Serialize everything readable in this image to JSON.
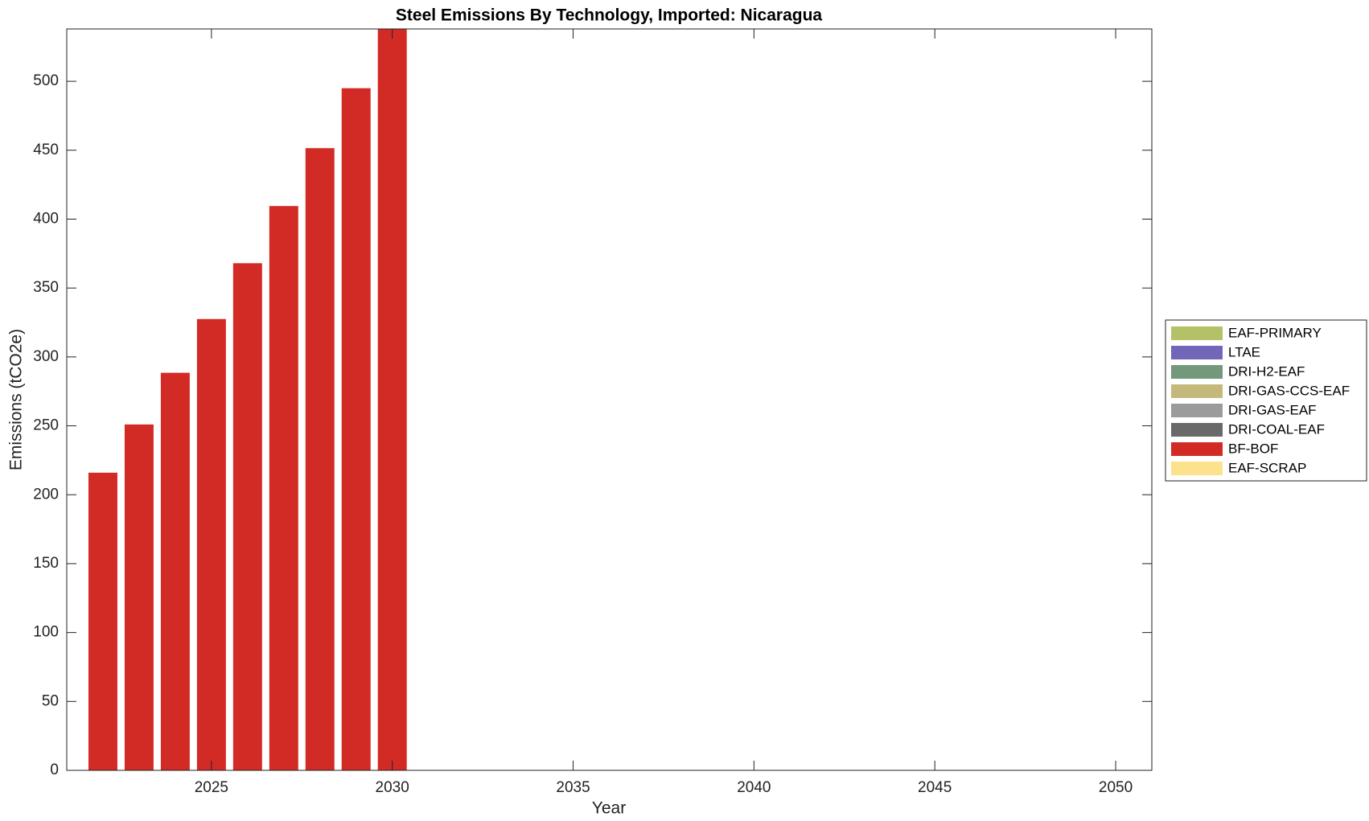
{
  "chart_data": {
    "type": "stacked_bar",
    "title": "Steel Emissions By Technology, Imported: Nicaragua",
    "x_label": "Year",
    "y_label": "Emissions (tCO2e)",
    "x": [
      2022,
      2023,
      2024,
      2025,
      2026,
      2027,
      2028,
      2029,
      2030
    ],
    "series": [
      {
        "name": "EAF-PRIMARY",
        "color": "#b5c167",
        "values": [
          0,
          0,
          0,
          0,
          0,
          0,
          0,
          0,
          0
        ]
      },
      {
        "name": "LTAE",
        "color": "#7266b8",
        "values": [
          0,
          0,
          0,
          0,
          0,
          0,
          0,
          0,
          0
        ]
      },
      {
        "name": "DRI-H2-EAF",
        "color": "#73987a",
        "values": [
          0,
          0,
          0,
          0,
          0,
          0,
          0,
          0,
          0
        ]
      },
      {
        "name": "DRI-GAS-CCS-EAF",
        "color": "#c4b97a",
        "values": [
          0,
          0,
          0,
          0,
          0,
          0,
          0,
          0,
          0
        ]
      },
      {
        "name": "DRI-GAS-EAF",
        "color": "#9b9b9b",
        "values": [
          0,
          0,
          0,
          0,
          0,
          0,
          0,
          0,
          0
        ]
      },
      {
        "name": "DRI-COAL-EAF",
        "color": "#696969",
        "values": [
          0,
          0,
          0,
          0,
          0,
          0,
          0,
          0,
          0
        ]
      },
      {
        "name": "BF-BOF",
        "color": "#d22b26",
        "values": [
          216,
          251,
          288.5,
          327.5,
          368,
          409.5,
          451.5,
          495,
          538
        ]
      },
      {
        "name": "EAF-SCRAP",
        "color": "#fde28e",
        "values": [
          0,
          0,
          0,
          0,
          0,
          0,
          0,
          0,
          0
        ]
      }
    ],
    "xlim": [
      2021,
      2051
    ],
    "xticks": [
      2025,
      2030,
      2035,
      2040,
      2045,
      2050
    ],
    "ylim": [
      0,
      538
    ],
    "yticks": [
      0,
      50,
      100,
      150,
      200,
      250,
      300,
      350,
      400,
      450,
      500
    ],
    "grid": false,
    "legend": "right"
  }
}
